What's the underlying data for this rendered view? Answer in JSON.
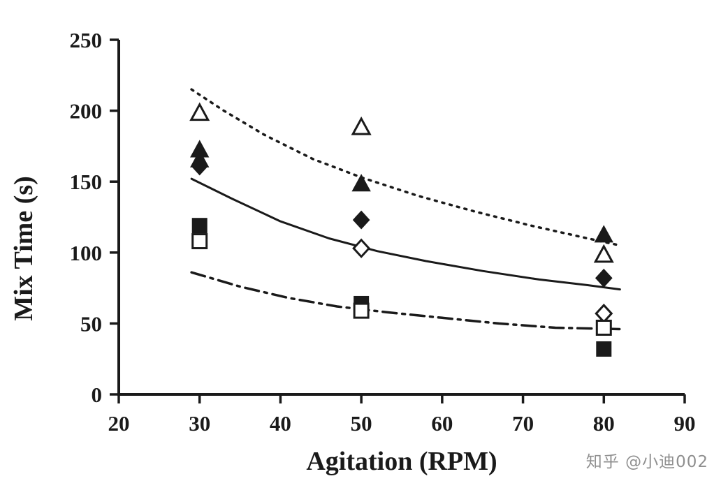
{
  "watermark": "知乎 @小迪002",
  "chart_data": {
    "type": "scatter",
    "title": "",
    "xlabel": "Agitation (RPM)",
    "ylabel": "Mix Time (s)",
    "xlim": [
      20,
      90
    ],
    "ylim": [
      0,
      250
    ],
    "xticks": [
      20,
      30,
      40,
      50,
      60,
      70,
      80,
      90
    ],
    "yticks": [
      0,
      50,
      100,
      150,
      200,
      250
    ],
    "grid": false,
    "legend": "none",
    "ink_color": "#1a1a1a",
    "series": [
      {
        "name": "open-triangle",
        "marker": "triangle",
        "fill": "open",
        "points": [
          [
            30,
            198
          ],
          [
            50,
            188
          ],
          [
            80,
            98
          ]
        ]
      },
      {
        "name": "filled-triangle",
        "marker": "triangle",
        "fill": "filled",
        "points": [
          [
            30,
            172
          ],
          [
            30,
            165
          ],
          [
            50,
            148
          ],
          [
            80,
            112
          ]
        ]
      },
      {
        "name": "filled-diamond",
        "marker": "diamond",
        "fill": "filled",
        "points": [
          [
            30,
            161
          ],
          [
            50,
            123
          ],
          [
            80,
            82
          ]
        ]
      },
      {
        "name": "open-diamond",
        "marker": "diamond",
        "fill": "open",
        "points": [
          [
            50,
            103
          ],
          [
            80,
            57
          ]
        ]
      },
      {
        "name": "filled-square",
        "marker": "square",
        "fill": "filled",
        "points": [
          [
            30,
            119
          ],
          [
            50,
            64
          ],
          [
            80,
            32
          ]
        ]
      },
      {
        "name": "open-square",
        "marker": "square",
        "fill": "open",
        "points": [
          [
            30,
            108
          ],
          [
            50,
            59
          ],
          [
            80,
            47
          ]
        ]
      }
    ],
    "curves": [
      {
        "name": "dotted-fit",
        "style": "dotted",
        "points": [
          [
            29,
            215
          ],
          [
            33,
            200
          ],
          [
            38,
            183
          ],
          [
            44,
            166
          ],
          [
            50,
            153
          ],
          [
            57,
            140
          ],
          [
            64,
            129
          ],
          [
            71,
            119
          ],
          [
            78,
            110
          ],
          [
            82,
            105
          ]
        ]
      },
      {
        "name": "solid-fit",
        "style": "solid",
        "points": [
          [
            29,
            152
          ],
          [
            34,
            138
          ],
          [
            40,
            122
          ],
          [
            46,
            110
          ],
          [
            52,
            101
          ],
          [
            58,
            94
          ],
          [
            65,
            87
          ],
          [
            72,
            81
          ],
          [
            78,
            77
          ],
          [
            82,
            74
          ]
        ]
      },
      {
        "name": "dashdot-fit",
        "style": "dashdot",
        "points": [
          [
            29,
            86
          ],
          [
            35,
            76
          ],
          [
            41,
            68
          ],
          [
            47,
            62
          ],
          [
            53,
            58
          ],
          [
            60,
            54
          ],
          [
            67,
            50
          ],
          [
            74,
            47
          ],
          [
            82,
            46
          ]
        ]
      }
    ]
  }
}
